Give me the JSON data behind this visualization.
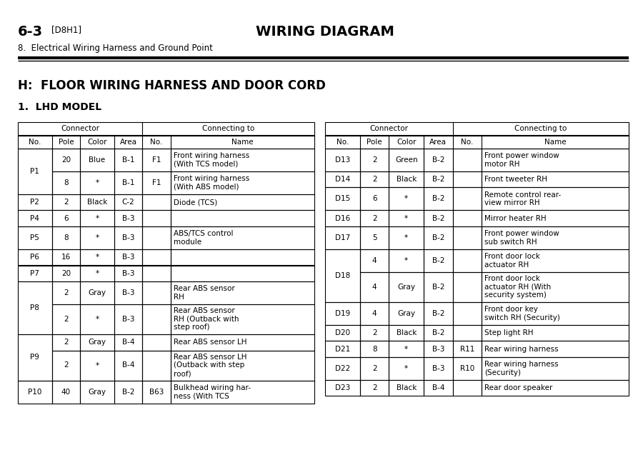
{
  "page_header_left_bold": "6-3",
  "page_header_left_small": "[D8H1]",
  "page_header_center": "WIRING DIAGRAM",
  "page_subheader": "8.  Electrical Wiring Harness and Ground Point",
  "section_title": "H:  FLOOR WIRING HARNESS AND DOOR CORD",
  "subsection_title": "1.  LHD MODEL",
  "left_table_rows": [
    [
      "P1",
      "20",
      "Blue",
      "B-1",
      "F1",
      "Front wiring harness\n(With TCS model)"
    ],
    [
      "P1",
      "8",
      "*",
      "B-1",
      "F1",
      "Front wiring harness\n(With ABS model)"
    ],
    [
      "P2",
      "2",
      "Black",
      "C-2",
      "",
      "Diode (TCS)"
    ],
    [
      "P4",
      "6",
      "*",
      "B-3",
      "",
      ""
    ],
    [
      "P5",
      "8",
      "*",
      "B-3",
      "",
      "ABS/TCS control\nmodule"
    ],
    [
      "P6",
      "16",
      "*",
      "B-3",
      "",
      ""
    ],
    [
      "P7",
      "20",
      "*",
      "B-3",
      "",
      ""
    ],
    [
      "P8",
      "2",
      "Gray",
      "B-3",
      "",
      "Rear ABS sensor\nRH"
    ],
    [
      "P8",
      "2",
      "*",
      "B-3",
      "",
      "Rear ABS sensor\nRH (Outback with\nstep roof)"
    ],
    [
      "P9",
      "2",
      "Gray",
      "B-4",
      "",
      "Rear ABS sensor LH"
    ],
    [
      "P9",
      "2",
      "*",
      "B-4",
      "",
      "Rear ABS sensor LH\n(Outback with step\nroof)"
    ],
    [
      "P10",
      "40",
      "Gray",
      "B-2",
      "B63",
      "Bulkhead wiring har-\nness (With TCS"
    ]
  ],
  "right_table_rows": [
    [
      "D13",
      "2",
      "Green",
      "B-2",
      "",
      "Front power window\nmotor RH"
    ],
    [
      "D14",
      "2",
      "Black",
      "B-2",
      "",
      "Front tweeter RH"
    ],
    [
      "D15",
      "6",
      "*",
      "B-2",
      "",
      "Remote control rear-\nview mirror RH"
    ],
    [
      "D16",
      "2",
      "*",
      "B-2",
      "",
      "Mirror heater RH"
    ],
    [
      "D17",
      "5",
      "*",
      "B-2",
      "",
      "Front power window\nsub switch RH"
    ],
    [
      "D18",
      "4",
      "*",
      "B-2",
      "",
      "Front door lock\nactuator RH"
    ],
    [
      "D18",
      "4",
      "Gray",
      "B-2",
      "",
      "Front door lock\nactuator RH (With\nsecurity system)"
    ],
    [
      "D19",
      "4",
      "Gray",
      "B-2",
      "",
      "Front door key\nswitch RH (Security)"
    ],
    [
      "D20",
      "2",
      "Black",
      "B-2",
      "",
      "Step light RH"
    ],
    [
      "D21",
      "8",
      "*",
      "B-3",
      "R11",
      "Rear wiring harness"
    ],
    [
      "D22",
      "2",
      "*",
      "B-3",
      "R10",
      "Rear wiring harness\n(Security)"
    ],
    [
      "D23",
      "2",
      "Black",
      "B-4",
      "",
      "Rear door speaker"
    ]
  ],
  "bg_color": "#ffffff",
  "text_color": "#000000"
}
